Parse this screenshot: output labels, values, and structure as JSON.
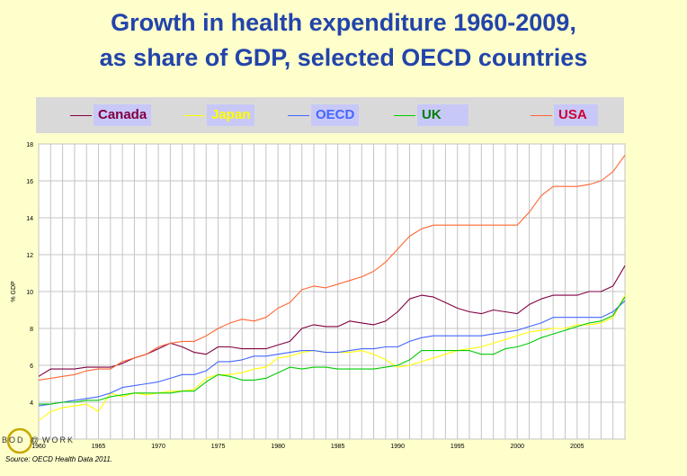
{
  "title_line1": "Growth in health expenditure 1960-2009,",
  "title_line2": "as share of GDP, selected OECD countries",
  "source": "Source: OECD Health Data 2011.",
  "logo_text": "BODY WORK",
  "chart_data": {
    "type": "line",
    "ylabel": "% GDP",
    "ylim": [
      2,
      18
    ],
    "xlim": [
      1960,
      2009
    ],
    "yticks": [
      2,
      4,
      6,
      8,
      10,
      12,
      14,
      16,
      18
    ],
    "xticks": [
      1960,
      1965,
      1970,
      1975,
      1980,
      1985,
      1990,
      1995,
      2000,
      2005
    ],
    "grid": true,
    "legend_position": "top",
    "x": [
      1960,
      1961,
      1962,
      1963,
      1964,
      1965,
      1966,
      1967,
      1968,
      1969,
      1970,
      1971,
      1972,
      1973,
      1974,
      1975,
      1976,
      1977,
      1978,
      1979,
      1980,
      1981,
      1982,
      1983,
      1984,
      1985,
      1986,
      1987,
      1988,
      1989,
      1990,
      1991,
      1992,
      1993,
      1994,
      1995,
      1996,
      1997,
      1998,
      1999,
      2000,
      2001,
      2002,
      2003,
      2004,
      2005,
      2006,
      2007,
      2008,
      2009
    ],
    "series": [
      {
        "name": "Canada",
        "color": "#800040",
        "values": [
          5.4,
          5.8,
          5.8,
          5.8,
          5.9,
          5.9,
          5.9,
          6.1,
          6.4,
          6.6,
          6.9,
          7.2,
          7.0,
          6.7,
          6.6,
          7.0,
          7.0,
          6.9,
          6.9,
          6.9,
          7.1,
          7.3,
          8.0,
          8.2,
          8.1,
          8.1,
          8.4,
          8.3,
          8.2,
          8.4,
          8.9,
          9.6,
          9.8,
          9.7,
          9.4,
          9.1,
          8.9,
          8.8,
          9.0,
          8.9,
          8.8,
          9.3,
          9.6,
          9.8,
          9.8,
          9.8,
          10.0,
          10.0,
          10.3,
          11.4
        ]
      },
      {
        "name": "Japan",
        "color": "#ffff00",
        "values": [
          3.0,
          3.5,
          3.7,
          3.8,
          3.9,
          3.5,
          4.5,
          4.3,
          4.5,
          4.4,
          4.5,
          4.6,
          4.6,
          4.7,
          5.3,
          5.5,
          5.5,
          5.6,
          5.8,
          5.9,
          6.4,
          6.5,
          6.7,
          6.8,
          6.7,
          6.7,
          6.7,
          6.8,
          6.6,
          6.3,
          5.9,
          6.0,
          6.2,
          6.4,
          6.6,
          6.8,
          6.9,
          7.0,
          7.2,
          7.4,
          7.6,
          7.8,
          7.9,
          8.0,
          8.0,
          8.2,
          8.2,
          8.3,
          8.6,
          9.8
        ]
      },
      {
        "name": "OECD",
        "color": "#4466ff",
        "values": [
          3.8,
          3.9,
          4.0,
          4.1,
          4.2,
          4.3,
          4.5,
          4.8,
          4.9,
          5.0,
          5.1,
          5.3,
          5.5,
          5.5,
          5.7,
          6.2,
          6.2,
          6.3,
          6.5,
          6.5,
          6.6,
          6.7,
          6.8,
          6.8,
          6.7,
          6.7,
          6.8,
          6.9,
          6.9,
          7.0,
          7.0,
          7.3,
          7.5,
          7.6,
          7.6,
          7.6,
          7.6,
          7.6,
          7.7,
          7.8,
          7.9,
          8.1,
          8.3,
          8.6,
          8.6,
          8.6,
          8.6,
          8.6,
          8.9,
          9.5
        ]
      },
      {
        "name": "UK",
        "color": "#00cc00",
        "values": [
          3.9,
          3.9,
          4.0,
          4.0,
          4.1,
          4.1,
          4.3,
          4.4,
          4.5,
          4.5,
          4.5,
          4.5,
          4.6,
          4.6,
          5.1,
          5.5,
          5.4,
          5.2,
          5.2,
          5.3,
          5.6,
          5.9,
          5.8,
          5.9,
          5.9,
          5.8,
          5.8,
          5.8,
          5.8,
          5.9,
          6.0,
          6.3,
          6.8,
          6.8,
          6.8,
          6.8,
          6.8,
          6.6,
          6.6,
          6.9,
          7.0,
          7.2,
          7.5,
          7.7,
          7.9,
          8.1,
          8.3,
          8.4,
          8.7,
          9.7
        ]
      },
      {
        "name": "USA",
        "color": "#ff6633",
        "values": [
          5.2,
          5.3,
          5.4,
          5.5,
          5.7,
          5.8,
          5.8,
          6.2,
          6.4,
          6.6,
          7.0,
          7.2,
          7.3,
          7.3,
          7.6,
          8.0,
          8.3,
          8.5,
          8.4,
          8.6,
          9.1,
          9.4,
          10.1,
          10.3,
          10.2,
          10.4,
          10.6,
          10.8,
          11.1,
          11.6,
          12.3,
          13.0,
          13.4,
          13.6,
          13.6,
          13.6,
          13.6,
          13.6,
          13.6,
          13.6,
          13.6,
          14.3,
          15.2,
          15.7,
          15.7,
          15.7,
          15.8,
          16.0,
          16.5,
          17.4
        ]
      }
    ]
  }
}
